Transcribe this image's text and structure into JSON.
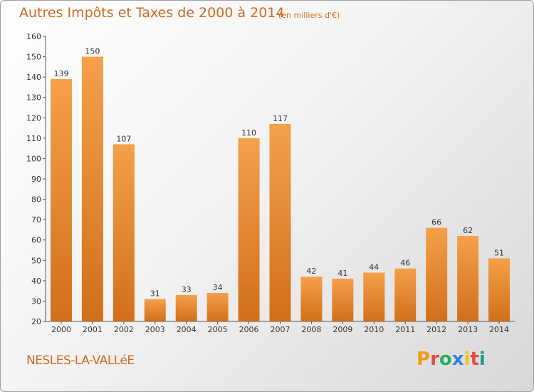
{
  "header": {
    "title": "Autres Impôts et Taxes de 2000 à 2014",
    "unit": "(en milliers d'€)"
  },
  "footer": {
    "town": "NESLES-LA-VALLéE",
    "logo_text": "Proxiti",
    "logo_colors": [
      "#f39c12",
      "#e74c3c",
      "#27ae60",
      "#2e86de",
      "#f1c40f",
      "#e74c3c",
      "#16a085"
    ]
  },
  "colors": {
    "bar_light": "#f5a04a",
    "bar_dark": "#d26f1a",
    "accent": "#d4691e"
  },
  "chart_data": {
    "type": "bar",
    "categories": [
      "2000",
      "2001",
      "2002",
      "2003",
      "2004",
      "2005",
      "2006",
      "2007",
      "2008",
      "2009",
      "2010",
      "2011",
      "2012",
      "2013",
      "2014"
    ],
    "values": [
      139,
      150,
      107,
      31,
      33,
      34,
      110,
      117,
      42,
      41,
      44,
      46,
      66,
      62,
      51
    ],
    "title": "Autres Impôts et Taxes de 2000 à 2014",
    "xlabel": "",
    "ylabel": "",
    "ylim": [
      20,
      160
    ],
    "yticks": [
      20,
      30,
      40,
      50,
      60,
      70,
      80,
      90,
      100,
      110,
      120,
      130,
      140,
      150,
      160
    ],
    "grid": false,
    "legend": "none"
  }
}
